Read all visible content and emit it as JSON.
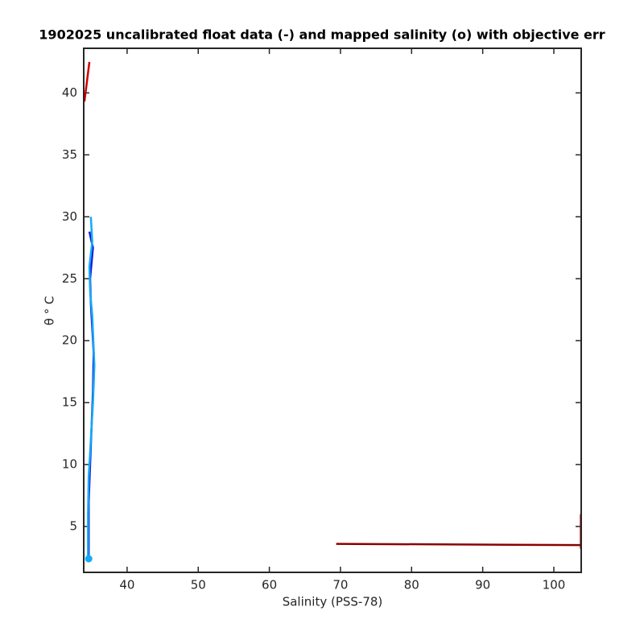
{
  "chart_data": {
    "type": "line",
    "title": "1902025 uncalibrated float data (-) and mapped salinity (o) with objective err",
    "xlabel": "Salinity (PSS-78)",
    "ylabel": "θ ° C",
    "xlim": [
      33.9,
      103.85
    ],
    "xticks": [
      40,
      50,
      60,
      70,
      80,
      90,
      100
    ],
    "ylim": [
      1.3,
      43.6
    ],
    "yticks": [
      5,
      10,
      15,
      20,
      25,
      30,
      35,
      40
    ],
    "grid": false,
    "series": [
      {
        "color": "#d00000",
        "x": [
          34.0,
          34.7
        ],
        "values": [
          39.3,
          42.5
        ]
      },
      {
        "color": "#d00000",
        "x": [
          103.8,
          103.8
        ],
        "values": [
          3.2,
          6.0
        ]
      },
      {
        "color": "#8b0000",
        "x": [
          69.4,
          103.8
        ],
        "values": [
          3.6,
          3.5
        ]
      },
      {
        "color": "#1515e0",
        "x": [
          34.7,
          35.0,
          35.2,
          34.8,
          34.9,
          35.1,
          35.3,
          35.2,
          35.0,
          34.8,
          34.6,
          34.6,
          34.6
        ],
        "values": [
          28.8,
          28.0,
          27.5,
          25.0,
          23.0,
          21.0,
          19.0,
          16.0,
          13.0,
          10.0,
          7.0,
          4.0,
          2.5
        ]
      },
      {
        "color": "#12aaf5",
        "x": [
          34.9,
          35.1,
          34.7,
          34.8,
          35.1,
          35.4,
          35.2,
          34.9,
          34.6,
          34.5,
          34.5,
          34.5
        ],
        "values": [
          30.0,
          28.0,
          26.0,
          24.0,
          22.0,
          18.0,
          15.0,
          12.0,
          9.0,
          6.0,
          3.0,
          2.4
        ]
      },
      {
        "color": "#12aaf5",
        "marker": true,
        "x": [
          34.6
        ],
        "values": [
          2.4
        ]
      }
    ]
  }
}
